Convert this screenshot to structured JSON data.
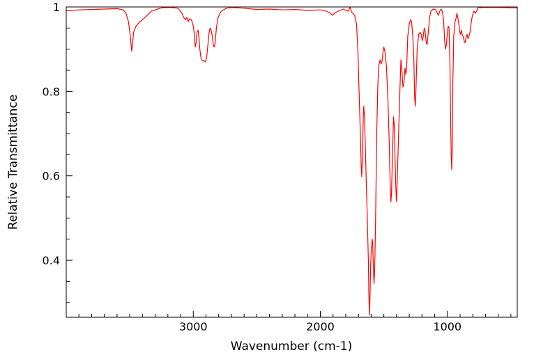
{
  "chart_data": {
    "type": "line",
    "title": "",
    "xlabel": "Wavenumber (cm-1)",
    "ylabel": "Relative Transmittance",
    "xlim": [
      4000,
      450
    ],
    "ylim": [
      0.265,
      1.0
    ],
    "x_reversed": true,
    "grid": false,
    "line_color": "#ff0000",
    "x_ticks": [
      {
        "value": 3000,
        "label": "3000"
      },
      {
        "value": 2000,
        "label": "2000"
      },
      {
        "value": 1000,
        "label": "1000"
      }
    ],
    "y_ticks": [
      {
        "value": 1.0,
        "label": "1"
      },
      {
        "value": 0.8,
        "label": "0.8"
      },
      {
        "value": 0.6,
        "label": "0.6"
      },
      {
        "value": 0.4,
        "label": "0.4"
      }
    ],
    "series": [
      {
        "points": [
          [
            4000,
            0.991
          ],
          [
            3900,
            0.993
          ],
          [
            3800,
            0.994
          ],
          [
            3700,
            0.995
          ],
          [
            3600,
            0.996
          ],
          [
            3550,
            0.993
          ],
          [
            3530,
            0.985
          ],
          [
            3510,
            0.965
          ],
          [
            3495,
            0.93
          ],
          [
            3485,
            0.895
          ],
          [
            3478,
            0.91
          ],
          [
            3470,
            0.94
          ],
          [
            3450,
            0.955
          ],
          [
            3420,
            0.965
          ],
          [
            3380,
            0.975
          ],
          [
            3330,
            0.99
          ],
          [
            3250,
            0.998
          ],
          [
            3180,
            0.999
          ],
          [
            3120,
            0.997
          ],
          [
            3090,
            0.985
          ],
          [
            3075,
            0.975
          ],
          [
            3060,
            0.97
          ],
          [
            3050,
            0.975
          ],
          [
            3040,
            0.965
          ],
          [
            3030,
            0.972
          ],
          [
            3015,
            0.97
          ],
          [
            3000,
            0.955
          ],
          [
            2990,
            0.93
          ],
          [
            2985,
            0.905
          ],
          [
            2978,
            0.915
          ],
          [
            2970,
            0.94
          ],
          [
            2962,
            0.945
          ],
          [
            2955,
            0.925
          ],
          [
            2948,
            0.9
          ],
          [
            2940,
            0.88
          ],
          [
            2932,
            0.875
          ],
          [
            2925,
            0.872
          ],
          [
            2915,
            0.873
          ],
          [
            2905,
            0.87
          ],
          [
            2895,
            0.88
          ],
          [
            2885,
            0.91
          ],
          [
            2875,
            0.94
          ],
          [
            2868,
            0.95
          ],
          [
            2860,
            0.945
          ],
          [
            2850,
            0.93
          ],
          [
            2842,
            0.91
          ],
          [
            2835,
            0.905
          ],
          [
            2828,
            0.915
          ],
          [
            2818,
            0.95
          ],
          [
            2805,
            0.975
          ],
          [
            2780,
            0.99
          ],
          [
            2740,
            0.997
          ],
          [
            2700,
            0.999
          ],
          [
            2600,
            0.997
          ],
          [
            2500,
            0.994
          ],
          [
            2400,
            0.995
          ],
          [
            2300,
            0.993
          ],
          [
            2200,
            0.994
          ],
          [
            2100,
            0.992
          ],
          [
            2000,
            0.993
          ],
          [
            1950,
            0.99
          ],
          [
            1920,
            0.985
          ],
          [
            1905,
            0.98
          ],
          [
            1890,
            0.985
          ],
          [
            1860,
            0.99
          ],
          [
            1820,
            0.995
          ],
          [
            1800,
            0.992
          ],
          [
            1780,
            0.99
          ],
          [
            1765,
            1.0
          ],
          [
            1755,
            0.988
          ],
          [
            1745,
            0.985
          ],
          [
            1730,
            0.98
          ],
          [
            1715,
            0.96
          ],
          [
            1705,
            0.9
          ],
          [
            1695,
            0.8
          ],
          [
            1685,
            0.7
          ],
          [
            1678,
            0.62
          ],
          [
            1674,
            0.598
          ],
          [
            1668,
            0.65
          ],
          [
            1662,
            0.74
          ],
          [
            1658,
            0.765
          ],
          [
            1652,
            0.74
          ],
          [
            1645,
            0.66
          ],
          [
            1638,
            0.58
          ],
          [
            1630,
            0.5
          ],
          [
            1622,
            0.4
          ],
          [
            1618,
            0.32
          ],
          [
            1614,
            0.27
          ],
          [
            1610,
            0.3
          ],
          [
            1604,
            0.39
          ],
          [
            1598,
            0.43
          ],
          [
            1592,
            0.45
          ],
          [
            1588,
            0.44
          ],
          [
            1584,
            0.4
          ],
          [
            1580,
            0.36
          ],
          [
            1577,
            0.345
          ],
          [
            1572,
            0.38
          ],
          [
            1565,
            0.5
          ],
          [
            1556,
            0.7
          ],
          [
            1548,
            0.81
          ],
          [
            1540,
            0.86
          ],
          [
            1530,
            0.875
          ],
          [
            1522,
            0.865
          ],
          [
            1515,
            0.87
          ],
          [
            1508,
            0.89
          ],
          [
            1500,
            0.905
          ],
          [
            1492,
            0.895
          ],
          [
            1480,
            0.86
          ],
          [
            1468,
            0.78
          ],
          [
            1458,
            0.68
          ],
          [
            1452,
            0.6
          ],
          [
            1448,
            0.56
          ],
          [
            1444,
            0.538
          ],
          [
            1440,
            0.56
          ],
          [
            1432,
            0.65
          ],
          [
            1424,
            0.74
          ],
          [
            1418,
            0.72
          ],
          [
            1410,
            0.62
          ],
          [
            1404,
            0.56
          ],
          [
            1400,
            0.538
          ],
          [
            1394,
            0.6
          ],
          [
            1384,
            0.7
          ],
          [
            1374,
            0.8
          ],
          [
            1366,
            0.875
          ],
          [
            1358,
            0.85
          ],
          [
            1350,
            0.81
          ],
          [
            1342,
            0.82
          ],
          [
            1334,
            0.855
          ],
          [
            1326,
            0.84
          ],
          [
            1320,
            0.86
          ],
          [
            1312,
            0.93
          ],
          [
            1300,
            0.96
          ],
          [
            1290,
            0.97
          ],
          [
            1282,
            0.965
          ],
          [
            1272,
            0.93
          ],
          [
            1264,
            0.88
          ],
          [
            1258,
            0.79
          ],
          [
            1253,
            0.765
          ],
          [
            1248,
            0.8
          ],
          [
            1238,
            0.9
          ],
          [
            1226,
            0.935
          ],
          [
            1214,
            0.94
          ],
          [
            1206,
            0.935
          ],
          [
            1198,
            0.92
          ],
          [
            1190,
            0.93
          ],
          [
            1182,
            0.95
          ],
          [
            1176,
            0.945
          ],
          [
            1168,
            0.92
          ],
          [
            1160,
            0.91
          ],
          [
            1150,
            0.94
          ],
          [
            1140,
            0.975
          ],
          [
            1130,
            0.99
          ],
          [
            1110,
            0.995
          ],
          [
            1090,
            0.993
          ],
          [
            1080,
            0.985
          ],
          [
            1070,
            0.98
          ],
          [
            1060,
            0.99
          ],
          [
            1050,
            0.995
          ],
          [
            1040,
            0.99
          ],
          [
            1030,
            0.97
          ],
          [
            1022,
            0.92
          ],
          [
            1015,
            0.9
          ],
          [
            1008,
            0.91
          ],
          [
            1000,
            0.94
          ],
          [
            994,
            0.955
          ],
          [
            987,
            0.95
          ],
          [
            980,
            0.87
          ],
          [
            975,
            0.75
          ],
          [
            970,
            0.65
          ],
          [
            966,
            0.615
          ],
          [
            962,
            0.66
          ],
          [
            957,
            0.82
          ],
          [
            950,
            0.93
          ],
          [
            940,
            0.965
          ],
          [
            930,
            0.975
          ],
          [
            925,
            0.985
          ],
          [
            918,
            0.975
          ],
          [
            910,
            0.96
          ],
          [
            902,
            0.94
          ],
          [
            896,
            0.935
          ],
          [
            890,
            0.945
          ],
          [
            884,
            0.935
          ],
          [
            876,
            0.93
          ],
          [
            868,
            0.92
          ],
          [
            860,
            0.915
          ],
          [
            852,
            0.93
          ],
          [
            845,
            0.935
          ],
          [
            838,
            0.925
          ],
          [
            830,
            0.93
          ],
          [
            822,
            0.94
          ],
          [
            814,
            0.96
          ],
          [
            806,
            0.975
          ],
          [
            798,
            0.985
          ],
          [
            790,
            0.99
          ],
          [
            780,
            0.985
          ],
          [
            770,
            0.99
          ],
          [
            760,
            0.998
          ],
          [
            750,
            0.999
          ],
          [
            740,
            0.998
          ],
          [
            720,
            0.999
          ],
          [
            700,
            0.999
          ],
          [
            600,
            0.999
          ],
          [
            500,
            0.998
          ],
          [
            450,
            0.998
          ]
        ]
      }
    ]
  }
}
